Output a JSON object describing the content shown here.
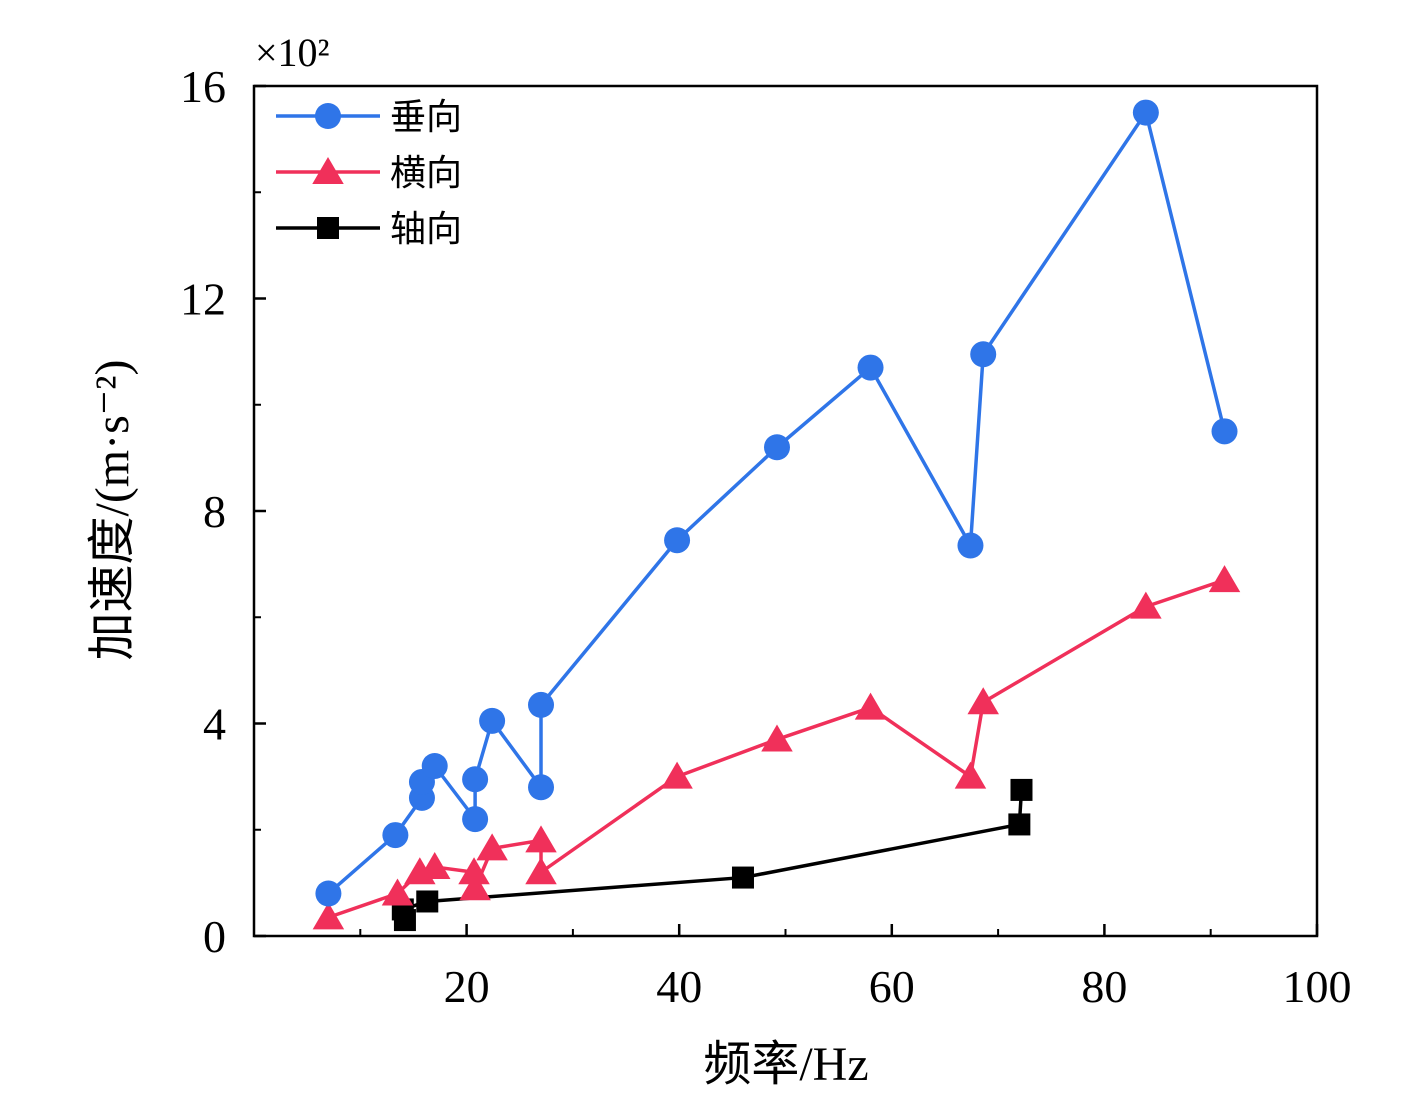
{
  "chart_data": {
    "type": "line",
    "title": "",
    "xlabel": "频率/Hz",
    "ylabel": "加速度/(m·s⁻²)",
    "y_multiplier": "×10²",
    "xlim": [
      0,
      100
    ],
    "ylim": [
      0,
      16
    ],
    "xticks": [
      20,
      40,
      60,
      80,
      100
    ],
    "yticks": [
      0,
      4,
      8,
      12,
      16
    ],
    "grid": false,
    "legend_position": "top-left",
    "series": [
      {
        "name": "垂向",
        "color": "#2f75e8",
        "marker": "circle",
        "x": [
          7,
          13.3,
          15.8,
          15.8,
          17,
          20.8,
          20.8,
          22.4,
          27,
          27,
          39.8,
          49.2,
          58,
          67.4,
          68.6,
          83.9,
          91.3
        ],
        "y": [
          0.8,
          1.9,
          2.6,
          2.9,
          3.2,
          2.2,
          2.95,
          4.05,
          2.8,
          4.35,
          7.45,
          9.2,
          10.7,
          7.35,
          10.95,
          15.5,
          9.5
        ]
      },
      {
        "name": "横向",
        "color": "#f0305a",
        "marker": "triangle",
        "x": [
          7,
          13.5,
          15.6,
          17,
          20.7,
          20.8,
          22.4,
          27,
          27,
          39.8,
          49.2,
          58,
          67.4,
          68.6,
          83.9,
          91.3
        ],
        "y": [
          0.35,
          0.8,
          1.2,
          1.3,
          1.2,
          0.9,
          1.65,
          1.8,
          1.2,
          3.0,
          3.7,
          4.3,
          3.0,
          4.4,
          6.2,
          6.7
        ]
      },
      {
        "name": "轴向",
        "color": "#000000",
        "marker": "square",
        "x": [
          14.2,
          14,
          16.3,
          46,
          72,
          72.2
        ],
        "y": [
          0.3,
          0.5,
          0.65,
          1.1,
          2.1,
          2.75
        ]
      }
    ]
  }
}
